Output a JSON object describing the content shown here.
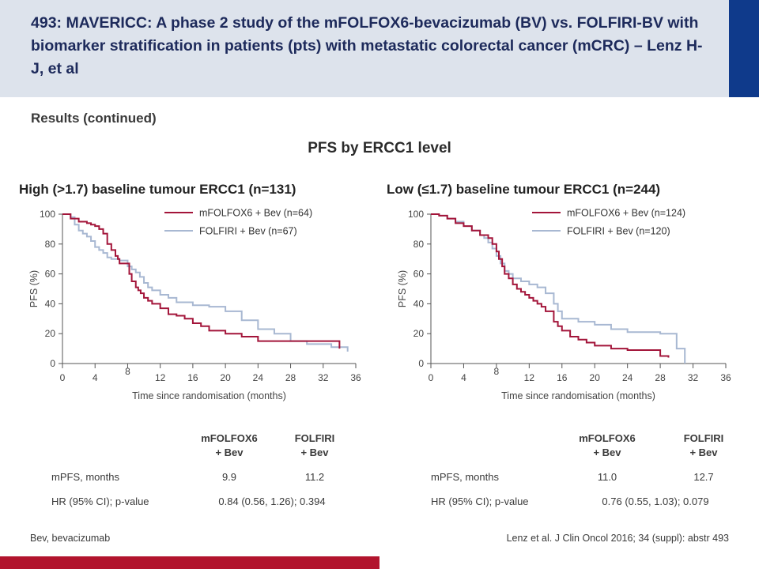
{
  "header": {
    "title": "493: MAVERICC: A phase 2 study of the mFOLFOX6-bevacizumab (BV) vs. FOLFIRI-BV with biomarker stratification in patients (pts) with metastatic colorectal cancer (mCRC) – Lenz H-J, et al"
  },
  "subheading": "Results (continued)",
  "main_title": "PFS by ERCC1 level",
  "colors": {
    "mfolfox6": "#a3153a",
    "folfiri": "#a8b8d2",
    "header_bg": "#dde3ec",
    "accent_blue": "#0f3a8b",
    "accent_red": "#b2142d"
  },
  "chart_data": [
    {
      "type": "line",
      "title": "High (>1.7) baseline tumour ERCC1 (n=131)",
      "xlabel": "Time since randomisation (months)",
      "ylabel": "PFS (%)",
      "xlim": [
        0,
        36
      ],
      "ylim": [
        0,
        100
      ],
      "xticks": [
        "0",
        "4",
        "8",
        "12",
        "16",
        "20",
        "24",
        "28",
        "32",
        "36"
      ],
      "yticks": [
        "0",
        "20",
        "40",
        "60",
        "80",
        "100"
      ],
      "legend_position": "top-right",
      "series": [
        {
          "name": "mFOLFOX6 + Bev (n=64)",
          "color": "#a3153a",
          "x": [
            0,
            1,
            2,
            3,
            3.5,
            4,
            4.5,
            5,
            5.5,
            6,
            6.5,
            6.8,
            7,
            7.5,
            8,
            8.2,
            8.5,
            9,
            9.3,
            9.6,
            10,
            10.5,
            11,
            12,
            13,
            14,
            15,
            16,
            17,
            18,
            20,
            22,
            24,
            34
          ],
          "y": [
            100,
            97,
            95,
            94,
            93,
            92,
            90,
            87,
            80,
            76,
            72,
            70,
            67,
            67,
            67,
            60,
            55,
            51,
            49,
            47,
            44,
            42,
            40,
            37,
            33,
            32,
            30,
            27,
            25,
            22,
            20,
            18,
            15,
            10
          ]
        },
        {
          "name": "FOLFIRI + Bev (n=67)",
          "color": "#a8b8d2",
          "x": [
            0,
            1,
            1.5,
            2,
            2.5,
            3,
            3.5,
            4,
            4.5,
            5,
            5.5,
            6,
            7,
            8,
            8.5,
            9,
            9.5,
            10,
            10.5,
            11,
            12,
            13,
            14,
            16,
            18,
            20,
            22,
            24,
            26,
            28,
            30,
            33,
            35
          ],
          "y": [
            100,
            98,
            93,
            89,
            87,
            85,
            82,
            78,
            76,
            74,
            71,
            70,
            69,
            65,
            63,
            61,
            58,
            54,
            51,
            49,
            46,
            44,
            41,
            39,
            38,
            35,
            29,
            23,
            20,
            15,
            13,
            11,
            8
          ]
        }
      ],
      "table": {
        "col_headers": [
          "mFOLFOX6\n+ Bev",
          "FOLFIRI\n+ Bev"
        ],
        "row1_label": "mPFS, months",
        "row1_values": [
          "9.9",
          "11.2"
        ],
        "row2_label": "HR (95% CI); p-value",
        "row2_value": "0.84 (0.56, 1.26); 0.394"
      }
    },
    {
      "type": "line",
      "title": "Low (≤1.7) baseline tumour ERCC1 (n=244)",
      "xlabel": "Time since randomisation (months)",
      "ylabel": "PFS (%)",
      "xlim": [
        0,
        36
      ],
      "ylim": [
        0,
        100
      ],
      "xticks": [
        "0",
        "4",
        "8",
        "12",
        "16",
        "20",
        "24",
        "28",
        "32",
        "36"
      ],
      "yticks": [
        "0",
        "20",
        "40",
        "60",
        "80",
        "100"
      ],
      "legend_position": "top-right",
      "series": [
        {
          "name": "mFOLFOX6 + Bev (n=124)",
          "color": "#a3153a",
          "x": [
            0,
            1,
            2,
            3,
            4,
            5,
            6,
            7,
            7.5,
            8,
            8.3,
            8.7,
            9,
            9.5,
            10,
            10.5,
            11,
            11.5,
            12,
            12.5,
            13,
            13.5,
            14,
            15,
            15.5,
            16,
            17,
            18,
            19,
            20,
            22,
            24,
            28,
            29
          ],
          "y": [
            100,
            99,
            97,
            94,
            92,
            89,
            86,
            84,
            80,
            75,
            70,
            65,
            60,
            57,
            53,
            50,
            48,
            46,
            44,
            42,
            40,
            38,
            35,
            28,
            25,
            22,
            18,
            16,
            14,
            12,
            10,
            9,
            5,
            4
          ]
        },
        {
          "name": "FOLFIRI + Bev (n=120)",
          "color": "#a8b8d2",
          "x": [
            0,
            1,
            2,
            3,
            4,
            5,
            6,
            6.5,
            7,
            7.5,
            8,
            8.5,
            9,
            9.5,
            10,
            11,
            12,
            13,
            14,
            15,
            15.5,
            16,
            18,
            20,
            22,
            24,
            28,
            30,
            31
          ],
          "y": [
            100,
            99,
            97,
            95,
            92,
            89,
            86,
            84,
            81,
            77,
            72,
            67,
            62,
            60,
            57,
            55,
            53,
            51,
            47,
            40,
            35,
            30,
            28,
            26,
            23,
            21,
            20,
            10,
            0
          ]
        }
      ],
      "table": {
        "col_headers": [
          "mFOLFOX6\n+ Bev",
          "FOLFIRI\n+ Bev"
        ],
        "row1_label": "mPFS, months",
        "row1_values": [
          "11.0",
          "12.7"
        ],
        "row2_label": "HR (95% CI); p-value",
        "row2_value": "0.76 (0.55, 1.03); 0.079"
      }
    }
  ],
  "footer": {
    "abbrev": "Bev, bevacizumab",
    "reference": "Lenz et al. J Clin Oncol 2016; 34 (suppl): abstr 493"
  }
}
